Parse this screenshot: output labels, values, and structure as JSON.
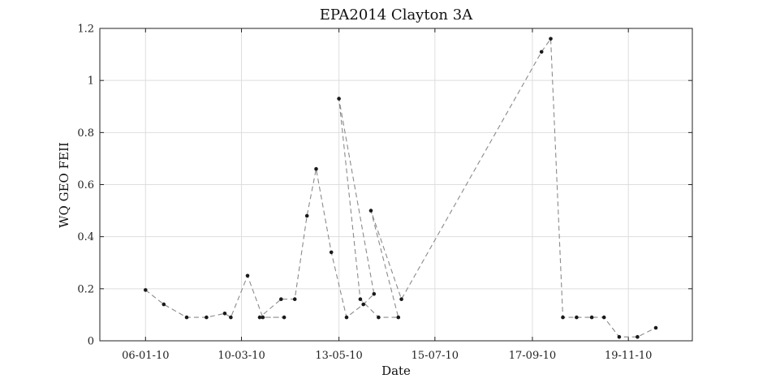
{
  "chart_data": {
    "type": "line",
    "title": "EPA2014 Clayton 3A",
    "xlabel": "Date",
    "ylabel": "WQ GEO FEII",
    "x_axis": "date",
    "xlim": [
      "2009-12-07",
      "2010-12-31"
    ],
    "ylim": [
      0,
      1.2
    ],
    "grid": true,
    "legend": "none",
    "line_style": "dashed",
    "line_color": "#8a8a8a",
    "marker_color": "#1a1a1a",
    "xticks": [
      {
        "date": "2010-01-06",
        "label": "06-01-10"
      },
      {
        "date": "2010-03-10",
        "label": "10-03-10"
      },
      {
        "date": "2010-05-13",
        "label": "13-05-10"
      },
      {
        "date": "2010-07-15",
        "label": "15-07-10"
      },
      {
        "date": "2010-09-17",
        "label": "17-09-10"
      },
      {
        "date": "2010-11-19",
        "label": "19-11-10"
      }
    ],
    "yticks": [
      {
        "value": 0,
        "label": "0"
      },
      {
        "value": 0.2,
        "label": "0.2"
      },
      {
        "value": 0.4,
        "label": "0.4"
      },
      {
        "value": 0.6,
        "label": "0.6"
      },
      {
        "value": 0.8,
        "label": "0.8"
      },
      {
        "value": 1.0,
        "label": "1"
      },
      {
        "value": 1.2,
        "label": "1.2"
      }
    ],
    "series": [
      {
        "points": [
          {
            "x": "2010-01-06",
            "y": 0.195
          },
          {
            "x": "2010-01-18",
            "y": 0.14
          },
          {
            "x": "2010-01-33",
            "y": 0.09
          },
          {
            "x": "2010-02-15",
            "y": 0.09
          },
          {
            "x": "2010-02-27",
            "y": 0.105
          },
          {
            "x": "2010-03-03",
            "y": 0.09
          },
          {
            "x": "2010-03-14",
            "y": 0.25
          },
          {
            "x": "2010-03-24",
            "y": 0.09
          },
          {
            "x": "2010-04-07",
            "y": 0.09
          },
          {
            "x": "2010-03-22",
            "y": 0.09
          },
          {
            "x": "2010-04-05",
            "y": 0.16
          },
          {
            "x": "2010-04-14",
            "y": 0.16
          },
          {
            "x": "2010-04-22",
            "y": 0.48
          },
          {
            "x": "2010-04-28",
            "y": 0.66
          },
          {
            "x": "2010-05-08",
            "y": 0.34
          },
          {
            "x": "2010-05-18",
            "y": 0.09
          },
          {
            "x": "2010-05-29",
            "y": 0.14
          },
          {
            "x": "2010-06-05",
            "y": 0.18
          },
          {
            "x": "2010-05-13",
            "y": 0.93
          },
          {
            "x": "2010-05-27",
            "y": 0.16
          },
          {
            "x": "2010-06-08",
            "y": 0.09
          },
          {
            "x": "2010-06-21",
            "y": 0.09
          },
          {
            "x": "2010-06-03",
            "y": 0.5
          },
          {
            "x": "2010-06-23",
            "y": 0.16
          },
          {
            "x": "2010-09-23",
            "y": 1.11
          },
          {
            "x": "2010-09-29",
            "y": 1.16
          },
          {
            "x": "2010-10-07",
            "y": 0.09
          },
          {
            "x": "2010-10-16",
            "y": 0.09
          },
          {
            "x": "2010-10-26",
            "y": 0.09
          },
          {
            "x": "2010-11-03",
            "y": 0.09
          },
          {
            "x": "2010-11-13",
            "y": 0.015
          },
          {
            "x": "2010-11-25",
            "y": 0.015
          },
          {
            "x": "2010-12-07",
            "y": 0.05
          }
        ]
      }
    ]
  }
}
